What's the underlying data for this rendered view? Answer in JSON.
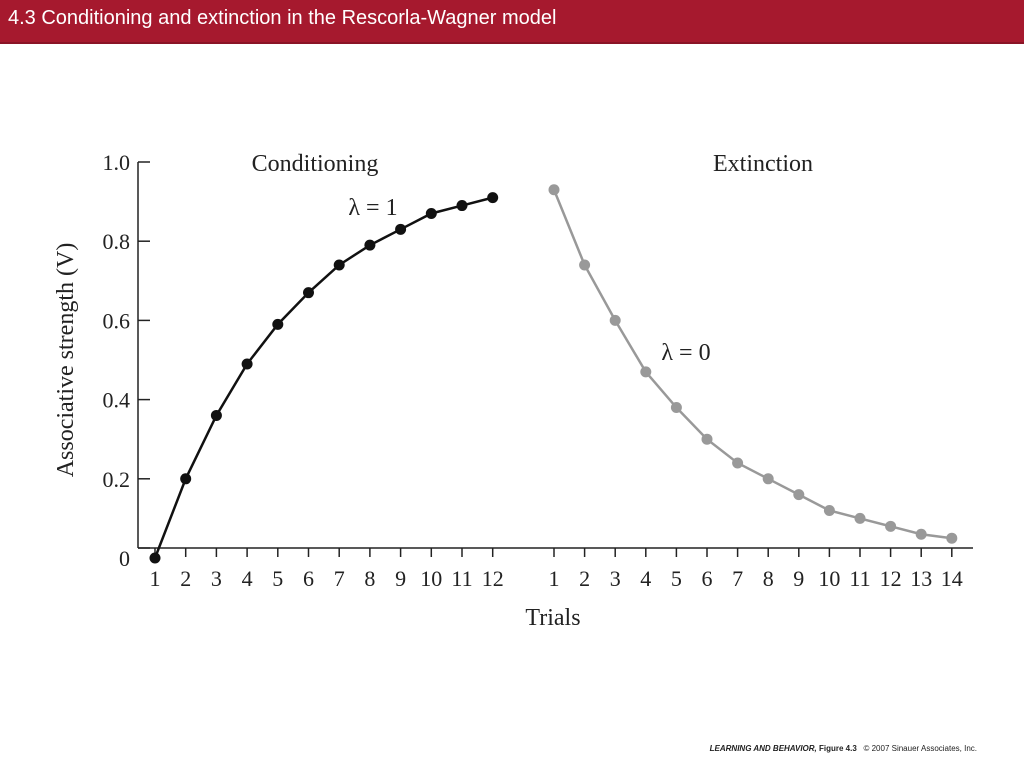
{
  "header": {
    "title": "4.3  Conditioning and extinction in the Rescorla-Wagner model"
  },
  "footer": {
    "book": "LEARNING AND BEHAVIOR,",
    "figure": "Figure 4.3",
    "copyright": "© 2007 Sinauer Associates, Inc."
  },
  "colors": {
    "header_bg": "#a6192e",
    "conditioning": "#111111",
    "extinction": "#999999"
  },
  "chart_data": {
    "type": "line",
    "xlabel": "Trials",
    "ylabel": "Associative strength (V)",
    "ylim": [
      0,
      1.0
    ],
    "yticks": [
      "0",
      "0.2",
      "0.4",
      "0.6",
      "0.8",
      "1.0"
    ],
    "grid": false,
    "panels": [
      {
        "title": "Conditioning",
        "annotation": "λ = 1",
        "x": [
          1,
          2,
          3,
          4,
          5,
          6,
          7,
          8,
          9,
          10,
          11,
          12
        ],
        "xticks": [
          "1",
          "2",
          "3",
          "4",
          "5",
          "6",
          "7",
          "8",
          "9",
          "10",
          "11",
          "12"
        ],
        "values": [
          0.0,
          0.2,
          0.36,
          0.49,
          0.59,
          0.67,
          0.74,
          0.79,
          0.83,
          0.87,
          0.89,
          0.91
        ],
        "color": "#111111"
      },
      {
        "title": "Extinction",
        "annotation": "λ = 0",
        "x": [
          1,
          2,
          3,
          4,
          5,
          6,
          7,
          8,
          9,
          10,
          11,
          12,
          13,
          14
        ],
        "xticks": [
          "1",
          "2",
          "3",
          "4",
          "5",
          "6",
          "7",
          "8",
          "9",
          "10",
          "11",
          "12",
          "13",
          "14"
        ],
        "values": [
          0.93,
          0.74,
          0.6,
          0.47,
          0.38,
          0.3,
          0.24,
          0.2,
          0.16,
          0.12,
          0.1,
          0.08,
          0.06,
          0.05
        ],
        "color": "#999999"
      }
    ]
  }
}
